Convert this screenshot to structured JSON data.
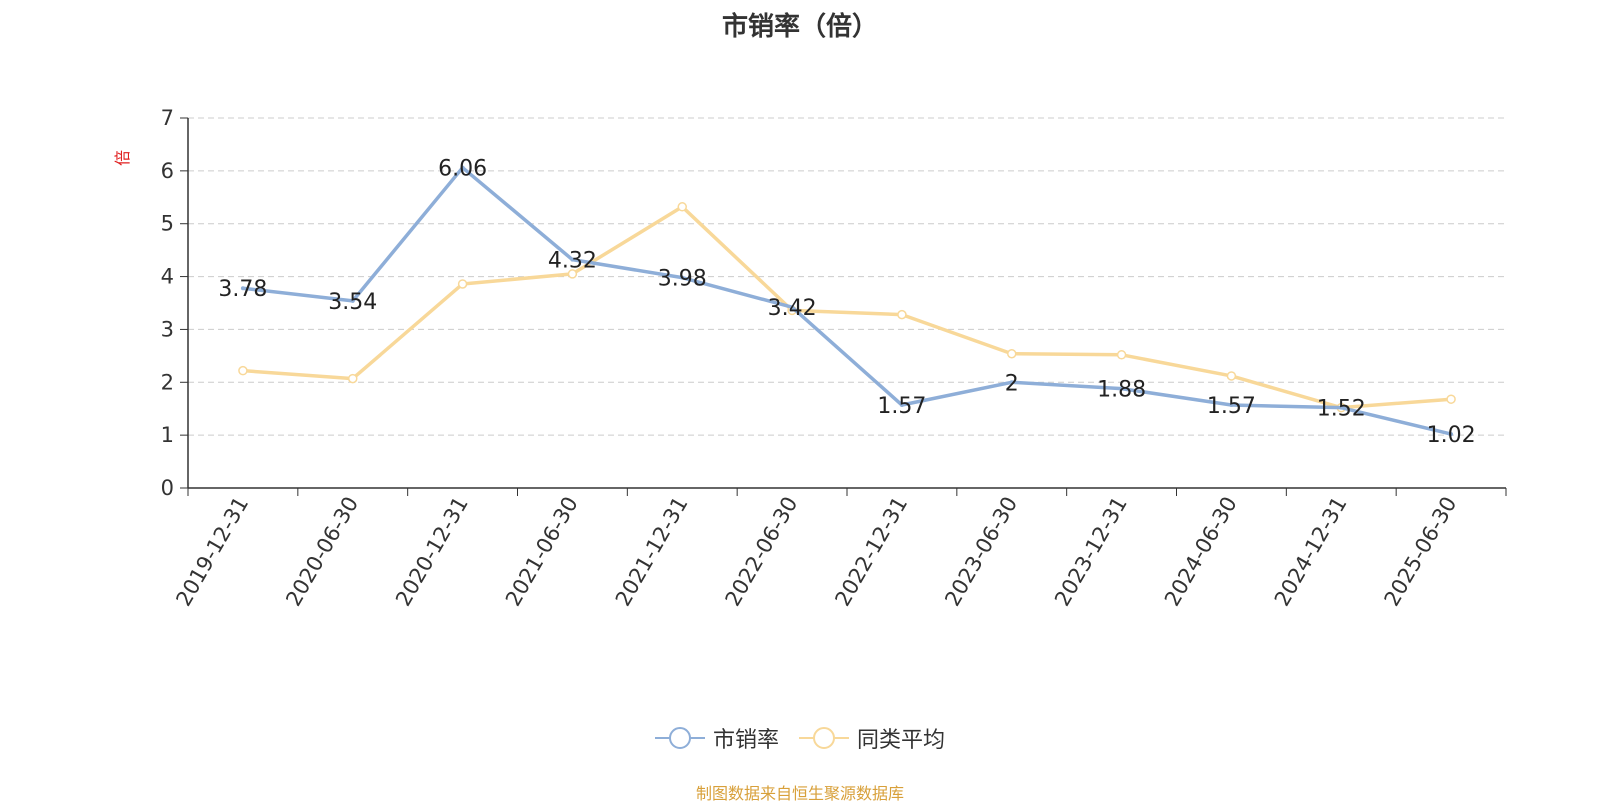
{
  "chart_data": {
    "type": "line",
    "title": "市销率（倍）",
    "ylabel": "倍",
    "categories": [
      "2019-12-31",
      "2020-06-30",
      "2020-12-31",
      "2021-06-30",
      "2021-12-31",
      "2022-06-30",
      "2022-12-31",
      "2023-06-30",
      "2023-12-31",
      "2024-06-30",
      "2024-12-31",
      "2025-06-30"
    ],
    "ylim": [
      0,
      7
    ],
    "yticks": [
      "0",
      "1",
      "2",
      "3",
      "4",
      "5",
      "6",
      "7"
    ],
    "grid": true,
    "legend_position": "bottom",
    "series": [
      {
        "name": "市销率",
        "color": "#8eaed8",
        "values": [
          3.78,
          3.54,
          6.06,
          4.32,
          3.98,
          3.42,
          1.57,
          2,
          1.88,
          1.57,
          1.52,
          1.02
        ],
        "labels": [
          "3.78",
          "3.54",
          "6.06",
          "4.32",
          "3.98",
          "3.42",
          "1.57",
          "2",
          "1.88",
          "1.57",
          "1.52",
          "1.02"
        ]
      },
      {
        "name": "同类平均",
        "color": "#f8d899",
        "values": [
          2.22,
          2.07,
          3.86,
          4.05,
          5.32,
          3.36,
          3.28,
          2.54,
          2.52,
          2.12,
          1.52,
          1.68
        ]
      }
    ]
  },
  "footer": {
    "source": "制图数据来自恒生聚源数据库"
  },
  "colors": {
    "axis": "#333333",
    "grid": "#cccccc",
    "ylabel": "#e02020",
    "source": "#d8a03a"
  }
}
